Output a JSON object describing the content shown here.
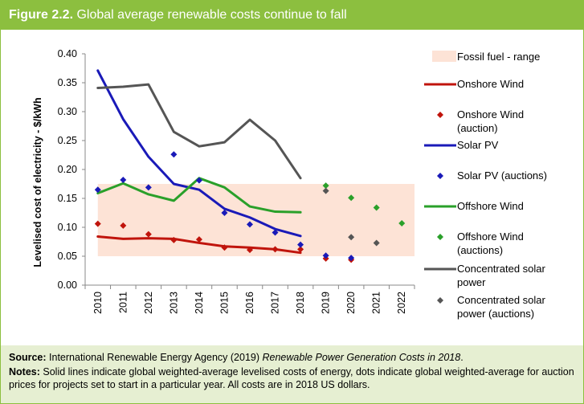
{
  "header": {
    "figure_label": "Figure 2.2.",
    "title": "Global average renewable costs continue to fall"
  },
  "footer": {
    "source_label": "Source:",
    "source_text": "International Renewable Energy Agency (2019)",
    "source_title": "Renewable Power Generation Costs in 2018",
    "source_end": ".",
    "notes_label": "Notes:",
    "notes_text": "Solid lines indicate global weighted-average levelised costs of energy, dots indicate global weighted-average for auction prices for projects set to start in a particular year. All costs are in 2018 US dollars."
  },
  "colors": {
    "accent": "#8cbf3f",
    "footer_bg": "#e6efd2",
    "fossil_band": "#fde3d6",
    "onshore": "#c0140c",
    "solar_pv": "#1a1ab8",
    "offshore": "#2aa02a",
    "csp": "#555555"
  },
  "chart_data": {
    "type": "line",
    "title": "",
    "xlabel": "",
    "ylabel": "Levelised cost of electricity - $/kWh",
    "categories": [
      "2010",
      "2011",
      "2012",
      "2013",
      "2014",
      "2015",
      "2016",
      "2017",
      "2018",
      "2019",
      "2020",
      "2021",
      "2022"
    ],
    "ylim": [
      0,
      0.4
    ],
    "yticks": [
      "0.00",
      "0.05",
      "0.10",
      "0.15",
      "0.20",
      "0.25",
      "0.30",
      "0.35",
      "0.40"
    ],
    "grid": false,
    "legend_position": "right",
    "fossil_range": {
      "name": "Fossil fuel - range",
      "low": 0.05,
      "high": 0.175,
      "x_start": "2010",
      "x_end": "2018"
    },
    "series": [
      {
        "name": "Onshore Wind",
        "kind": "line",
        "color": "#c0140c",
        "x": [
          "2010",
          "2011",
          "2012",
          "2013",
          "2014",
          "2015",
          "2016",
          "2017",
          "2018"
        ],
        "values": [
          0.084,
          0.08,
          0.081,
          0.08,
          0.073,
          0.067,
          0.065,
          0.062,
          0.056
        ]
      },
      {
        "name": "Onshore Wind (auction)",
        "kind": "points",
        "color": "#c0140c",
        "x": [
          "2010",
          "2011",
          "2012",
          "2013",
          "2014",
          "2015",
          "2016",
          "2017",
          "2018",
          "2019",
          "2020"
        ],
        "values": [
          0.106,
          0.103,
          0.088,
          0.078,
          0.079,
          0.065,
          0.061,
          0.062,
          0.062,
          0.046,
          0.044
        ]
      },
      {
        "name": "Solar PV",
        "kind": "line",
        "color": "#1a1ab8",
        "x": [
          "2010",
          "2011",
          "2012",
          "2013",
          "2014",
          "2015",
          "2016",
          "2017",
          "2018"
        ],
        "values": [
          0.371,
          0.287,
          0.222,
          0.175,
          0.165,
          0.132,
          0.117,
          0.097,
          0.085
        ]
      },
      {
        "name": "Solar PV (auctions)",
        "kind": "points",
        "color": "#1a1ab8",
        "x": [
          "2010",
          "2011",
          "2012",
          "2013",
          "2014",
          "2015",
          "2016",
          "2017",
          "2018",
          "2019",
          "2020"
        ],
        "values": [
          0.165,
          0.182,
          0.169,
          0.226,
          0.181,
          0.125,
          0.105,
          0.091,
          0.07,
          0.051,
          0.047
        ]
      },
      {
        "name": "Offshore Wind",
        "kind": "line",
        "color": "#2aa02a",
        "x": [
          "2010",
          "2011",
          "2012",
          "2013",
          "2014",
          "2015",
          "2016",
          "2017",
          "2018"
        ],
        "values": [
          0.159,
          0.176,
          0.157,
          0.146,
          0.185,
          0.169,
          0.136,
          0.127,
          0.126
        ]
      },
      {
        "name": "Offshore Wind (auctions)",
        "kind": "points",
        "color": "#2aa02a",
        "x": [
          "2019",
          "2020",
          "2021",
          "2022"
        ],
        "values": [
          0.172,
          0.151,
          0.134,
          0.107
        ]
      },
      {
        "name": "Concentrated solar power",
        "kind": "line",
        "color": "#555555",
        "x": [
          "2010",
          "2011",
          "2012",
          "2013",
          "2014",
          "2015",
          "2016",
          "2017",
          "2018"
        ],
        "values": [
          0.341,
          0.343,
          0.347,
          0.265,
          0.24,
          0.247,
          0.286,
          0.25,
          0.185
        ]
      },
      {
        "name": "Concentrated solar power (auctions)",
        "kind": "points",
        "color": "#555555",
        "x": [
          "2019",
          "2020",
          "2021"
        ],
        "values": [
          0.163,
          0.083,
          0.073
        ]
      }
    ]
  }
}
